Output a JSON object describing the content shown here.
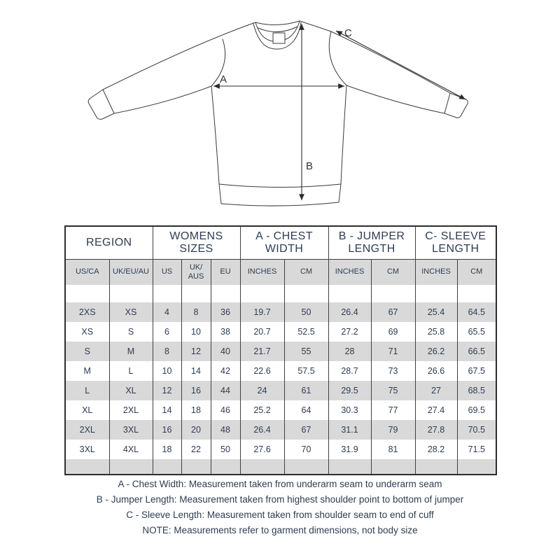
{
  "diagram": {
    "label_a": "A",
    "label_b": "B",
    "label_c": "C"
  },
  "table": {
    "groups": [
      {
        "label": "REGION"
      },
      {
        "label": "WOMENS SIZES"
      },
      {
        "label": "A - CHEST WIDTH"
      },
      {
        "label": "B - JUMPER LENGTH"
      },
      {
        "label": "C- SLEEVE LENGTH"
      }
    ],
    "subheaders": [
      "US/CA",
      "UK/EU/AU",
      "US",
      "UK/ AUS",
      "EU",
      "INCHES",
      "CM",
      "INCHES",
      "CM",
      "INCHES",
      "CM"
    ],
    "rows": [
      [
        "2XS",
        "XS",
        "4",
        "8",
        "36",
        "19.7",
        "50",
        "26.4",
        "67",
        "25.4",
        "64.5"
      ],
      [
        "XS",
        "S",
        "6",
        "10",
        "38",
        "20.7",
        "52.5",
        "27.2",
        "69",
        "25.8",
        "65.5"
      ],
      [
        "S",
        "M",
        "8",
        "12",
        "40",
        "21.7",
        "55",
        "28",
        "71",
        "26.2",
        "66.5"
      ],
      [
        "M",
        "L",
        "10",
        "14",
        "42",
        "22.6",
        "57.5",
        "28.7",
        "73",
        "26.6",
        "67.5"
      ],
      [
        "L",
        "XL",
        "12",
        "16",
        "44",
        "24",
        "61",
        "29.5",
        "75",
        "27",
        "68.5"
      ],
      [
        "XL",
        "2XL",
        "14",
        "18",
        "46",
        "25.2",
        "64",
        "30.3",
        "77",
        "27.4",
        "69.5"
      ],
      [
        "2XL",
        "3XL",
        "16",
        "20",
        "48",
        "26.4",
        "67",
        "31.1",
        "79",
        "27.8",
        "70.5"
      ],
      [
        "3XL",
        "4XL",
        "18",
        "22",
        "50",
        "27.6",
        "70",
        "31.9",
        "81",
        "28.2",
        "71.5"
      ]
    ]
  },
  "notes": {
    "line_a": "A - Chest Width: Measurement taken from underarm seam to underarm seam",
    "line_b": "B - Jumper Length: Measurement taken from highest shoulder point to bottom of jumper",
    "line_c": "C - Sleeve Length: Measurement taken from shoulder seam to end of cuff",
    "note": "NOTE: Measurements refer to garment dimensions, not body size"
  },
  "colors": {
    "row_stripe": "#d9d9d9",
    "text": "#2e3d52",
    "table_border": "#2e2e2e",
    "sketch_line": "#3a3a3a"
  }
}
